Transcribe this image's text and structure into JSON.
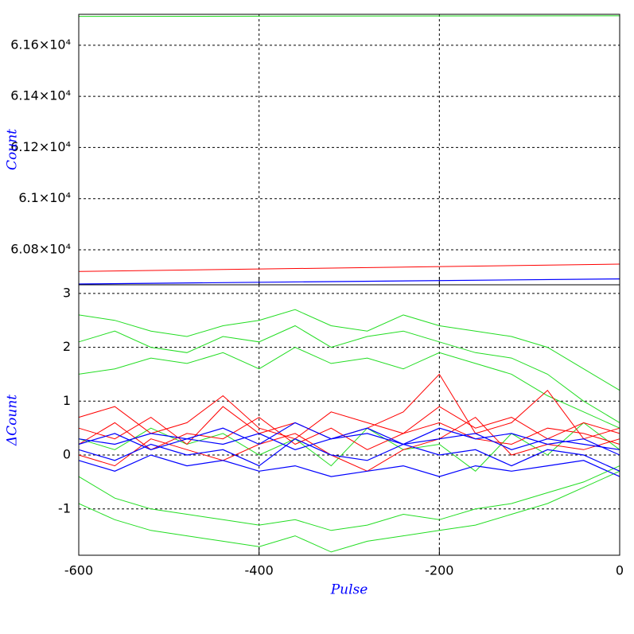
{
  "chart_data": [
    {
      "type": "line",
      "ylabel": "Count",
      "x": [
        -600,
        0
      ],
      "series": [
        {
          "color": "#22dd22",
          "values": [
            61713,
            61715
          ]
        },
        {
          "color": "#ff0000",
          "values": [
            60715,
            60744
          ]
        },
        {
          "color": "#0000ff",
          "values": [
            60666,
            60686
          ]
        }
      ],
      "xlim": [
        -600,
        0
      ],
      "xticks": [
        -600,
        -400,
        -200,
        0
      ],
      "xtick_labels": false,
      "ylim": [
        60663,
        61721
      ],
      "yticks": [
        {
          "value": 60800,
          "label": "6.08×10⁴"
        },
        {
          "value": 61000,
          "label": "6.1×10⁴"
        },
        {
          "value": 61200,
          "label": "6.12×10⁴"
        },
        {
          "value": 61400,
          "label": "6.14×10⁴"
        },
        {
          "value": 61600,
          "label": "6.16×10⁴"
        }
      ],
      "grid": true
    },
    {
      "type": "line",
      "ylabel": "ΔCount",
      "xlabel": "Pulse",
      "x": [
        -600,
        -560,
        -520,
        -480,
        -440,
        -400,
        -360,
        -320,
        -280,
        -240,
        -200,
        -160,
        -120,
        -80,
        -40,
        0
      ],
      "series": [
        {
          "color": "#22dd22",
          "values": [
            2.6,
            2.5,
            2.3,
            2.2,
            2.4,
            2.5,
            2.7,
            2.4,
            2.3,
            2.6,
            2.4,
            2.3,
            2.2,
            2.0,
            1.6,
            1.2
          ]
        },
        {
          "color": "#22dd22",
          "values": [
            2.1,
            2.3,
            2.0,
            1.9,
            2.2,
            2.1,
            2.4,
            2.0,
            2.2,
            2.3,
            2.1,
            1.9,
            1.8,
            1.5,
            1.0,
            0.6
          ]
        },
        {
          "color": "#22dd22",
          "values": [
            1.5,
            1.6,
            1.8,
            1.7,
            1.9,
            1.6,
            2.0,
            1.7,
            1.8,
            1.6,
            1.9,
            1.7,
            1.5,
            1.1,
            0.8,
            0.5
          ]
        },
        {
          "color": "#22dd22",
          "values": [
            -0.4,
            -0.8,
            -1.0,
            -1.1,
            -1.2,
            -1.3,
            -1.2,
            -1.4,
            -1.3,
            -1.1,
            -1.2,
            -1.0,
            -0.9,
            -0.7,
            -0.5,
            -0.2
          ]
        },
        {
          "color": "#22dd22",
          "values": [
            -0.9,
            -1.2,
            -1.4,
            -1.5,
            -1.6,
            -1.7,
            -1.5,
            -1.8,
            -1.6,
            -1.5,
            -1.4,
            -1.3,
            -1.1,
            -0.9,
            -0.6,
            -0.3
          ]
        },
        {
          "color": "#22dd22",
          "values": [
            0.3,
            0.1,
            0.5,
            0.2,
            0.4,
            0.0,
            0.3,
            -0.2,
            0.5,
            0.1,
            0.2,
            -0.3,
            0.4,
            0.0,
            0.6,
            0.1
          ]
        },
        {
          "color": "#ff0000",
          "values": [
            0.5,
            0.3,
            0.7,
            0.2,
            0.9,
            0.4,
            0.6,
            0.3,
            0.5,
            0.8,
            1.5,
            0.4,
            0.6,
            1.2,
            0.3,
            0.5
          ]
        },
        {
          "color": "#ff0000",
          "values": [
            0.2,
            0.6,
            0.1,
            0.4,
            0.3,
            0.7,
            0.2,
            0.5,
            0.1,
            0.4,
            0.6,
            0.3,
            0.2,
            0.5,
            0.4,
            0.2
          ]
        },
        {
          "color": "#ff0000",
          "values": [
            0.0,
            -0.2,
            0.3,
            0.1,
            -0.1,
            0.2,
            0.4,
            0.0,
            -0.3,
            0.1,
            0.3,
            0.7,
            0.0,
            0.2,
            0.1,
            0.3
          ]
        },
        {
          "color": "#ff0000",
          "values": [
            0.7,
            0.9,
            0.4,
            0.6,
            1.1,
            0.5,
            0.3,
            0.8,
            0.6,
            0.4,
            0.9,
            0.5,
            0.7,
            0.3,
            0.6,
            0.4
          ]
        },
        {
          "color": "#0000ff",
          "values": [
            0.3,
            0.2,
            0.4,
            0.3,
            0.5,
            0.2,
            0.6,
            0.3,
            0.4,
            0.2,
            0.5,
            0.3,
            0.4,
            0.2,
            0.3,
            0.0
          ]
        },
        {
          "color": "#0000ff",
          "values": [
            0.1,
            -0.1,
            0.2,
            0.0,
            0.1,
            -0.2,
            0.3,
            0.0,
            -0.1,
            0.2,
            0.0,
            0.1,
            -0.2,
            0.1,
            0.0,
            -0.3
          ]
        },
        {
          "color": "#0000ff",
          "values": [
            -0.1,
            -0.3,
            0.0,
            -0.2,
            -0.1,
            -0.3,
            -0.2,
            -0.4,
            -0.3,
            -0.2,
            -0.4,
            -0.2,
            -0.3,
            -0.2,
            -0.1,
            -0.4
          ]
        },
        {
          "color": "#0000ff",
          "values": [
            0.2,
            0.4,
            0.1,
            0.3,
            0.2,
            0.4,
            0.1,
            0.3,
            0.5,
            0.2,
            0.3,
            0.4,
            0.1,
            0.3,
            0.2,
            0.1
          ]
        }
      ],
      "xlim": [
        -600,
        0
      ],
      "xticks": [
        -600,
        -400,
        -200,
        0
      ],
      "xtick_labels": true,
      "ylim": [
        -1.86,
        3.16
      ],
      "yticks": [
        -1,
        0,
        1,
        2,
        3
      ],
      "grid": true
    }
  ]
}
